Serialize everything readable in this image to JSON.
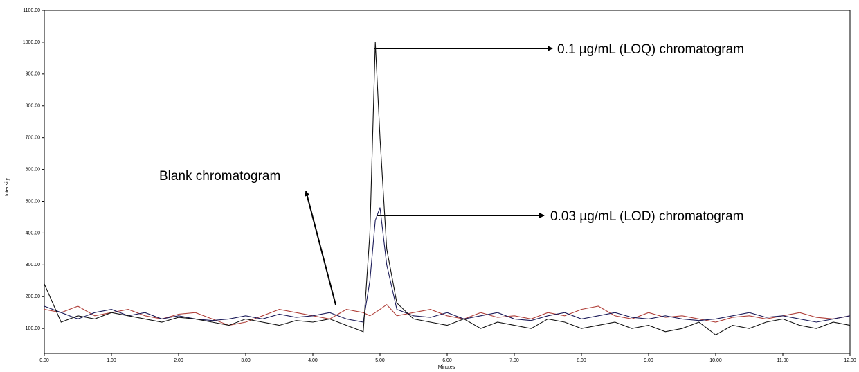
{
  "chart_data": {
    "type": "line",
    "x_label": "Minutes",
    "y_label": "Intensity",
    "x": [
      0,
      0.25,
      0.5,
      0.75,
      1,
      1.25,
      1.5,
      1.75,
      2,
      2.25,
      2.5,
      2.75,
      3,
      3.25,
      3.5,
      3.75,
      4,
      4.25,
      4.5,
      4.75,
      4.85,
      4.93,
      5,
      5.1,
      5.25,
      5.5,
      5.75,
      6,
      6.25,
      6.5,
      6.75,
      7,
      7.25,
      7.5,
      7.75,
      8,
      8.25,
      8.5,
      8.75,
      9,
      9.25,
      9.5,
      9.75,
      10,
      10.25,
      10.5,
      10.75,
      11,
      11.25,
      11.5,
      11.75,
      12
    ],
    "series": [
      {
        "name": "0.1 µg/mL (LOQ) chromatogram",
        "color": "#111111",
        "values": [
          240,
          120,
          140,
          130,
          150,
          140,
          130,
          120,
          135,
          130,
          120,
          110,
          130,
          120,
          110,
          125,
          120,
          130,
          110,
          90,
          400,
          1000,
          700,
          350,
          180,
          130,
          120,
          110,
          130,
          100,
          120,
          110,
          100,
          130,
          120,
          100,
          110,
          120,
          100,
          110,
          90,
          100,
          120,
          80,
          110,
          100,
          120,
          130,
          110,
          100,
          120,
          110
        ]
      },
      {
        "name": "0.03 µg/mL (LOD) chromatogram",
        "color": "#1c1c5a",
        "values": [
          170,
          150,
          130,
          150,
          160,
          140,
          150,
          130,
          140,
          130,
          125,
          130,
          140,
          130,
          145,
          135,
          140,
          150,
          130,
          120,
          250,
          440,
          480,
          300,
          160,
          140,
          135,
          150,
          130,
          140,
          150,
          130,
          125,
          140,
          150,
          130,
          140,
          150,
          135,
          130,
          140,
          130,
          125,
          130,
          140,
          150,
          135,
          140,
          130,
          120,
          130,
          140
        ]
      },
      {
        "name": "Blank chromatogram",
        "color": "#b0403a",
        "values": [
          160,
          150,
          170,
          140,
          150,
          160,
          140,
          130,
          145,
          150,
          130,
          110,
          120,
          140,
          160,
          150,
          140,
          130,
          160,
          150,
          140,
          150,
          160,
          175,
          140,
          150,
          160,
          140,
          130,
          150,
          135,
          140,
          130,
          150,
          140,
          160,
          170,
          140,
          130,
          150,
          135,
          140,
          130,
          120,
          135,
          140,
          130,
          140,
          150,
          135,
          130,
          140
        ]
      }
    ],
    "xlim": [
      0,
      12
    ],
    "xticks": [
      {
        "value": 0,
        "label": "0.00"
      },
      {
        "value": 1,
        "label": "1.00"
      },
      {
        "value": 2,
        "label": "2.00"
      },
      {
        "value": 3,
        "label": "3.00"
      },
      {
        "value": 4,
        "label": "4.00"
      },
      {
        "value": 5,
        "label": "5.00"
      },
      {
        "value": 6,
        "label": "6.00"
      },
      {
        "value": 7,
        "label": "7.00"
      },
      {
        "value": 8,
        "label": "8.00"
      },
      {
        "value": 9,
        "label": "9.00"
      },
      {
        "value": 10,
        "label": "10.00"
      },
      {
        "value": 11,
        "label": "11.00"
      },
      {
        "value": 12,
        "label": "12.00"
      }
    ],
    "ylim": [
      22,
      1100
    ],
    "yticks": [
      {
        "value": 100,
        "label": "100.00"
      },
      {
        "value": 200,
        "label": "200.00"
      },
      {
        "value": 300,
        "label": "300.00"
      },
      {
        "value": 400,
        "label": "400.00"
      },
      {
        "value": 500,
        "label": "500.00"
      },
      {
        "value": 600,
        "label": "600.00"
      },
      {
        "value": 700,
        "label": "700.00"
      },
      {
        "value": 800,
        "label": "800.00"
      },
      {
        "value": 900,
        "label": "900.00"
      },
      {
        "value": 1000,
        "label": "1000.00"
      },
      {
        "value": 1100,
        "label": "1100.00"
      }
    ]
  }
}
